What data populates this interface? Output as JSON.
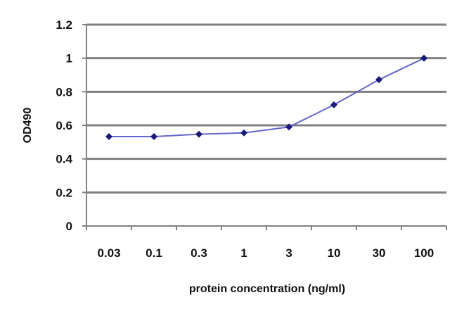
{
  "chart_data": {
    "type": "line",
    "title": "",
    "xlabel": "protein concentration (ng/ml)",
    "ylabel": "OD490",
    "categories": [
      "0.03",
      "0.1",
      "0.3",
      "1",
      "3",
      "10",
      "30",
      "100"
    ],
    "series": [
      {
        "name": "OD490",
        "values": [
          0.533,
          0.533,
          0.547,
          0.555,
          0.59,
          0.722,
          0.872,
          1.0
        ],
        "color": "#6666cc",
        "marker_color": "#1a1a7a"
      }
    ],
    "ylim": [
      0,
      1.2
    ],
    "yticks": [
      "0",
      "0.2",
      "0.4",
      "0.6",
      "0.8",
      "1",
      "1.2"
    ],
    "grid": true,
    "legend": "none"
  }
}
